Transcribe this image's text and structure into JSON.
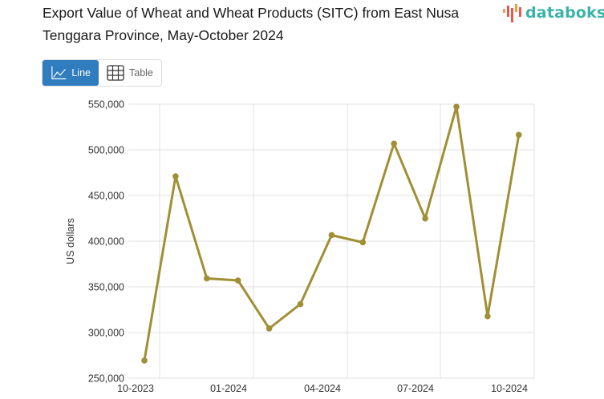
{
  "header": {
    "title": "Export Value of Wheat and Wheat Products (SITC) from East Nusa Tenggara Province, May-October 2024",
    "brand": "databoks"
  },
  "toggle": {
    "line_label": "Line",
    "table_label": "Table",
    "active": "Line"
  },
  "colors": {
    "series": "#a08f35",
    "accent": "#2f7cbf",
    "brand": "#3bb3a8",
    "grid": "#e0e0e0"
  },
  "chart_data": {
    "type": "line",
    "title": "Export Value of Wheat and Wheat Products (SITC) from East Nusa Tenggara Province, May-October 2024",
    "xlabel": "",
    "ylabel": "US dollars",
    "ylim": [
      250000,
      550000
    ],
    "yticks": [
      "250,000",
      "300,000",
      "350,000",
      "400,000",
      "450,000",
      "500,000",
      "550,000"
    ],
    "xticks": [
      "10-2023",
      "01-2024",
      "04-2024",
      "07-2024",
      "10-2024"
    ],
    "grid": true,
    "legend": "none",
    "x": [
      "10-2023",
      "11-2023",
      "12-2023",
      "01-2024",
      "02-2024",
      "03-2024",
      "04-2024",
      "05-2024",
      "06-2024",
      "07-2024",
      "08-2024",
      "09-2024",
      "10-2024"
    ],
    "series": [
      {
        "name": "Export Value",
        "values": [
          269300,
          471000,
          359200,
          357000,
          304400,
          331100,
          406600,
          398700,
          506800,
          424800,
          547100,
          317800,
          516400
        ]
      }
    ]
  }
}
